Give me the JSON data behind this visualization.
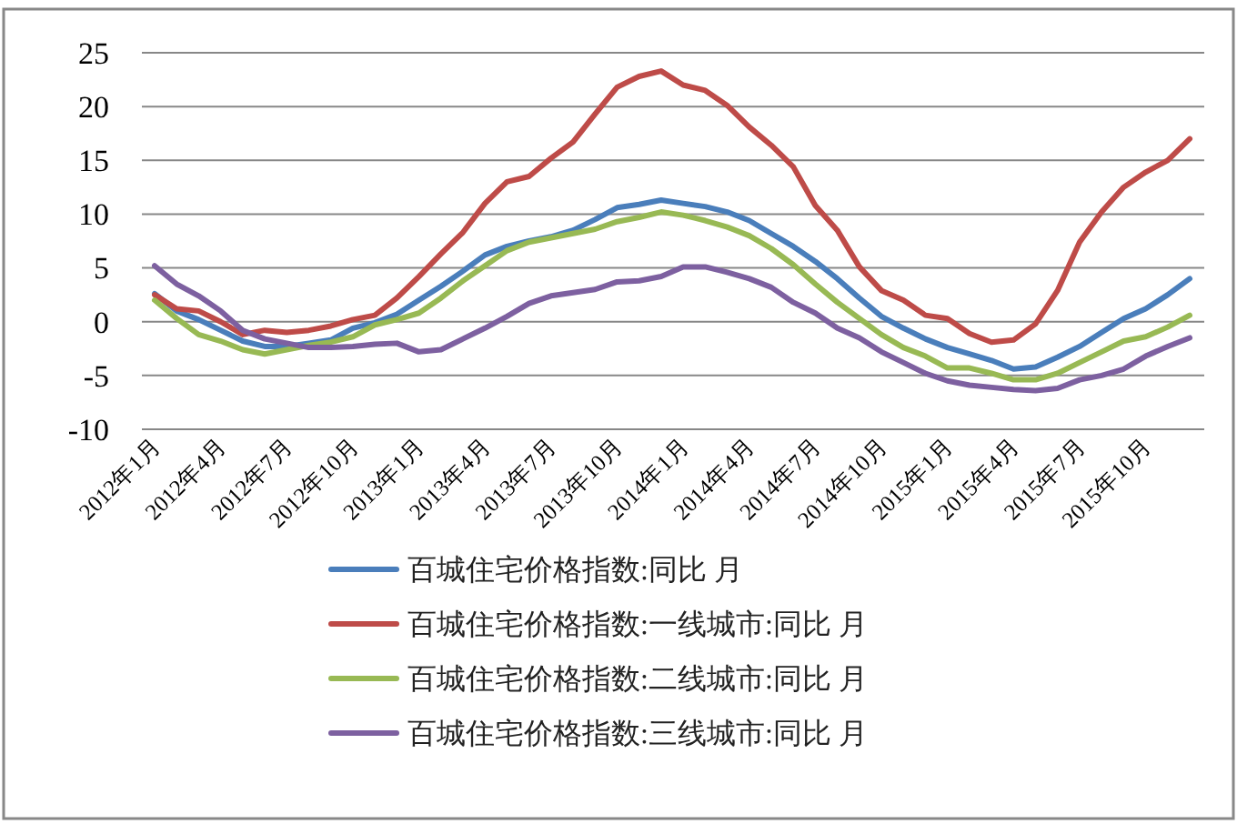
{
  "chart_data": {
    "type": "line",
    "categories": [
      "2012年1月",
      null,
      null,
      "2012年4月",
      null,
      null,
      "2012年7月",
      null,
      null,
      "2012年10月",
      null,
      null,
      "2013年1月",
      null,
      null,
      "2013年4月",
      null,
      null,
      "2013年7月",
      null,
      null,
      "2013年10月",
      null,
      null,
      "2014年1月",
      null,
      null,
      "2014年4月",
      null,
      null,
      "2014年7月",
      null,
      null,
      "2014年10月",
      null,
      null,
      "2015年1月",
      null,
      null,
      "2015年4月",
      null,
      null,
      "2015年7月",
      null,
      null,
      "2015年10月",
      null,
      null
    ],
    "series": [
      {
        "name": "百城住宅价格指数:同比 月",
        "color": "#4a7ebb",
        "values": [
          2.6,
          1.0,
          0.2,
          -0.8,
          -1.8,
          -2.3,
          -2.3,
          -2.0,
          -1.7,
          -0.6,
          -0.1,
          0.7,
          2.0,
          3.3,
          4.7,
          6.2,
          7.0,
          7.5,
          7.9,
          8.5,
          9.5,
          10.6,
          10.9,
          11.3,
          11.0,
          10.7,
          10.2,
          9.4,
          8.2,
          7.0,
          5.6,
          4.0,
          2.2,
          0.5,
          -0.6,
          -1.6,
          -2.4,
          -3.0,
          -3.6,
          -4.4,
          -4.2,
          -3.3,
          -2.3,
          -1.0,
          0.3,
          1.2,
          2.5,
          4.0
        ]
      },
      {
        "name": "百城住宅价格指数:一线城市:同比 月",
        "color": "#be4b48",
        "values": [
          2.5,
          1.2,
          1.0,
          0,
          -1.2,
          -0.8,
          -1.0,
          -0.8,
          -0.4,
          0.2,
          0.6,
          2.2,
          4.2,
          6.3,
          8.3,
          11.0,
          13.0,
          13.5,
          15.2,
          16.7,
          19.3,
          21.8,
          22.8,
          23.3,
          22.0,
          21.5,
          20.1,
          18.1,
          16.4,
          14.4,
          10.8,
          8.5,
          5.1,
          2.9,
          2.0,
          0.6,
          0.3,
          -1.1,
          -1.9,
          -1.7,
          -0.2,
          2.9,
          7.4,
          10.2,
          12.5,
          13.9,
          15.0,
          17.0
        ]
      },
      {
        "name": "百城住宅价格指数:二线城市:同比 月",
        "color": "#98b954",
        "values": [
          2.0,
          0.3,
          -1.2,
          -1.8,
          -2.6,
          -3.0,
          -2.6,
          -2.2,
          -1.9,
          -1.4,
          -0.3,
          0.2,
          0.8,
          2.2,
          3.8,
          5.2,
          6.6,
          7.4,
          7.8,
          8.2,
          8.6,
          9.3,
          9.7,
          10.2,
          9.9,
          9.4,
          8.8,
          8.0,
          6.8,
          5.3,
          3.5,
          1.8,
          0.3,
          -1.2,
          -2.4,
          -3.2,
          -4.3,
          -4.3,
          -4.8,
          -5.4,
          -5.4,
          -4.8,
          -3.8,
          -2.8,
          -1.8,
          -1.4,
          -0.5,
          0.6
        ]
      },
      {
        "name": "百城住宅价格指数:三线城市:同比 月",
        "color": "#7d60a0",
        "values": [
          5.2,
          3.5,
          2.4,
          1.0,
          -0.8,
          -1.6,
          -2.0,
          -2.4,
          -2.4,
          -2.3,
          -2.1,
          -2.0,
          -2.8,
          -2.6,
          -1.6,
          -0.6,
          0.5,
          1.7,
          2.4,
          2.7,
          3.0,
          3.7,
          3.8,
          4.2,
          5.1,
          5.1,
          4.6,
          4.0,
          3.2,
          1.8,
          0.8,
          -0.6,
          -1.5,
          -2.8,
          -3.8,
          -4.8,
          -5.5,
          -5.9,
          -6.1,
          -6.3,
          -6.4,
          -6.2,
          -5.4,
          -5.0,
          -4.4,
          -3.2,
          -2.3,
          -1.5
        ]
      }
    ],
    "ylim": [
      -10,
      25
    ],
    "yticks": [
      -10,
      -5,
      0,
      5,
      10,
      15,
      20,
      25
    ],
    "grid": "y",
    "legend": "bottom",
    "marker": "none",
    "line_style": "solid"
  }
}
